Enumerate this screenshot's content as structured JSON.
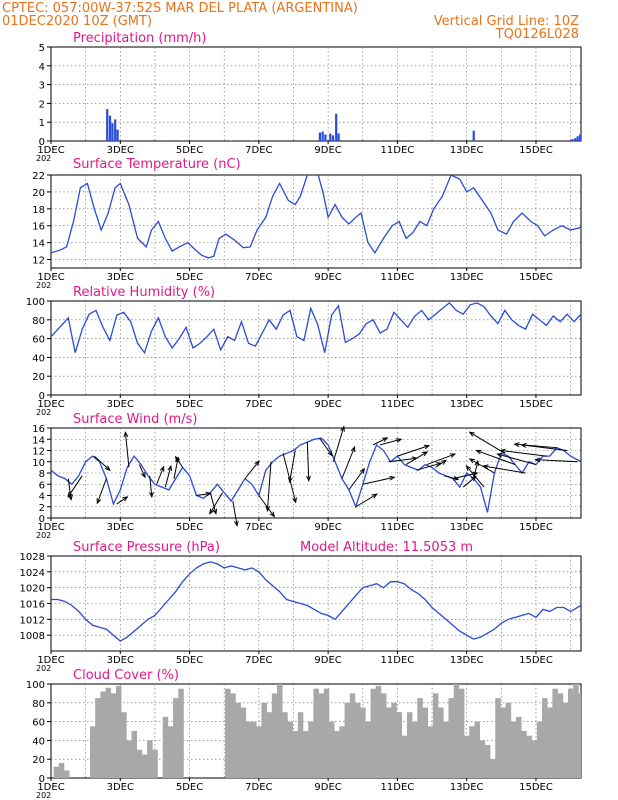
{
  "header": {
    "line1": "CPTEC:   057:00W-37:52S   MAR DEL PLATA (ARGENTINA)",
    "line2_left": "01DEC2020  10Z  (GMT)",
    "line2_right": "Vertical Grid Line: 10Z",
    "line3_right": "TQ0126L028"
  },
  "colors": {
    "header": "#e8731a",
    "panel_title": "#e0188a",
    "series": "#2a4bd7",
    "cloud": "#a8a8a8",
    "arrow": "#000000"
  },
  "x_axis": {
    "year_label": "202",
    "ticks": [
      {
        "label": "1DEC",
        "day": 1
      },
      {
        "label": "3DEC",
        "day": 3
      },
      {
        "label": "5DEC",
        "day": 5
      },
      {
        "label": "7DEC",
        "day": 7
      },
      {
        "label": "9DEC",
        "day": 9
      },
      {
        "label": "11DEC",
        "day": 11
      },
      {
        "label": "13DEC",
        "day": 13
      },
      {
        "label": "15DEC",
        "day": 15
      }
    ],
    "range": [
      1,
      16.3
    ]
  },
  "chart_data": [
    {
      "type": "bar",
      "title": "Precipitation (mm/h)",
      "ylim": [
        0,
        5
      ],
      "yticks": [
        0,
        1,
        2,
        3,
        4,
        5
      ],
      "x": [
        2.62,
        2.7,
        2.77,
        2.85,
        2.92,
        4.3,
        4.8,
        6.2,
        6.8,
        8.76,
        8.84,
        8.92,
        9.06,
        9.14,
        9.23,
        9.3,
        10.5,
        11.2,
        13.2,
        16.05,
        16.13,
        16.2,
        16.27
      ],
      "values": [
        1.7,
        1.35,
        0.95,
        1.15,
        0.6,
        0.03,
        0.03,
        0.03,
        0.02,
        0.45,
        0.5,
        0.35,
        0.4,
        0.3,
        1.45,
        0.4,
        0.03,
        0.03,
        0.55,
        0.1,
        0.15,
        0.25,
        0.35
      ]
    },
    {
      "type": "line",
      "title": "Surface Temperature (nC)",
      "ylim": [
        11,
        22
      ],
      "yticks": [
        12,
        14,
        16,
        18,
        20,
        22
      ],
      "x": [
        1.0,
        1.25,
        1.45,
        1.65,
        1.85,
        2.05,
        2.25,
        2.45,
        2.65,
        2.85,
        3.0,
        3.25,
        3.5,
        3.75,
        3.9,
        4.1,
        4.3,
        4.5,
        4.7,
        4.95,
        5.15,
        5.35,
        5.55,
        5.7,
        5.85,
        6.05,
        6.3,
        6.55,
        6.75,
        6.95,
        7.2,
        7.4,
        7.6,
        7.85,
        8.05,
        8.2,
        8.4,
        8.55,
        8.7,
        8.85,
        9.0,
        9.2,
        9.4,
        9.6,
        9.8,
        9.95,
        10.15,
        10.35,
        10.6,
        10.85,
        11.05,
        11.25,
        11.45,
        11.65,
        11.85,
        12.05,
        12.3,
        12.55,
        12.8,
        13.0,
        13.2,
        13.45,
        13.7,
        13.9,
        14.15,
        14.35,
        14.6,
        14.85,
        15.05,
        15.25,
        15.5,
        15.75,
        16.0,
        16.3
      ],
      "values": [
        12.8,
        13.1,
        13.5,
        16.5,
        20.5,
        21.0,
        18.0,
        15.5,
        17.5,
        20.5,
        21.0,
        18.5,
        14.5,
        13.5,
        15.5,
        16.5,
        14.5,
        13.0,
        13.5,
        14.0,
        13.2,
        12.5,
        12.2,
        12.4,
        14.5,
        15.0,
        14.3,
        13.4,
        13.5,
        15.5,
        17.0,
        19.5,
        21.0,
        19.0,
        18.5,
        19.5,
        22.0,
        22.5,
        22.2,
        20.0,
        17.0,
        18.5,
        17.0,
        16.2,
        17.0,
        17.5,
        14.0,
        12.8,
        14.5,
        16.0,
        16.5,
        14.5,
        15.2,
        16.5,
        16.0,
        18.0,
        19.5,
        22.0,
        21.5,
        20.0,
        20.5,
        19.0,
        17.5,
        15.5,
        15.0,
        16.5,
        17.5,
        16.5,
        16.0,
        14.8,
        15.5,
        16.0,
        15.5,
        15.8
      ]
    },
    {
      "type": "line",
      "title": "Relative Humidity (%)",
      "ylim": [
        0,
        100
      ],
      "yticks": [
        0,
        20,
        40,
        60,
        80,
        100
      ],
      "x": [
        1.0,
        1.25,
        1.5,
        1.7,
        1.9,
        2.1,
        2.3,
        2.5,
        2.7,
        2.9,
        3.1,
        3.3,
        3.5,
        3.7,
        3.9,
        4.1,
        4.3,
        4.5,
        4.7,
        4.9,
        5.1,
        5.3,
        5.5,
        5.7,
        5.9,
        6.1,
        6.3,
        6.5,
        6.7,
        6.9,
        7.1,
        7.3,
        7.5,
        7.7,
        7.9,
        8.1,
        8.3,
        8.5,
        8.7,
        8.9,
        9.1,
        9.3,
        9.5,
        9.7,
        9.9,
        10.1,
        10.3,
        10.5,
        10.7,
        10.9,
        11.1,
        11.3,
        11.5,
        11.7,
        11.9,
        12.1,
        12.3,
        12.5,
        12.7,
        12.9,
        13.1,
        13.3,
        13.5,
        13.7,
        13.9,
        14.1,
        14.3,
        14.5,
        14.7,
        14.9,
        15.1,
        15.3,
        15.5,
        15.7,
        15.9,
        16.1,
        16.3
      ],
      "values": [
        62,
        72,
        82,
        45,
        70,
        86,
        90,
        72,
        58,
        85,
        88,
        78,
        55,
        45,
        68,
        82,
        62,
        50,
        60,
        72,
        50,
        55,
        62,
        70,
        48,
        62,
        58,
        78,
        55,
        52,
        66,
        80,
        70,
        85,
        90,
        62,
        58,
        92,
        75,
        45,
        85,
        95,
        56,
        60,
        65,
        76,
        80,
        66,
        70,
        88,
        80,
        72,
        84,
        90,
        80,
        86,
        92,
        98,
        90,
        86,
        96,
        98,
        94,
        84,
        76,
        90,
        80,
        74,
        70,
        86,
        80,
        74,
        84,
        78,
        86,
        78,
        86
      ]
    },
    {
      "type": "line",
      "title": "Surface Wind (m/s)",
      "ylim": [
        0,
        16
      ],
      "yticks": [
        0,
        2,
        4,
        6,
        8,
        10,
        12,
        14,
        16
      ],
      "x": [
        1.0,
        1.2,
        1.4,
        1.6,
        1.8,
        2.0,
        2.2,
        2.4,
        2.6,
        2.8,
        3.0,
        3.2,
        3.4,
        3.6,
        3.8,
        4.0,
        4.2,
        4.4,
        4.6,
        4.8,
        5.0,
        5.2,
        5.4,
        5.6,
        5.8,
        6.0,
        6.2,
        6.4,
        6.6,
        6.8,
        7.0,
        7.2,
        7.4,
        7.6,
        7.8,
        8.0,
        8.2,
        8.4,
        8.6,
        8.8,
        9.0,
        9.2,
        9.4,
        9.6,
        9.8,
        10.0,
        10.2,
        10.4,
        10.6,
        10.8,
        11.0,
        11.2,
        11.4,
        11.6,
        11.8,
        12.0,
        12.2,
        12.4,
        12.6,
        12.8,
        13.0,
        13.2,
        13.4,
        13.6,
        13.8,
        14.0,
        14.2,
        14.4,
        14.6,
        14.8,
        15.0,
        15.2,
        15.4,
        15.6,
        15.8,
        16.0,
        16.3
      ],
      "values": [
        8.5,
        7.5,
        7.0,
        6.0,
        7.5,
        10.0,
        11.0,
        10.0,
        7.0,
        2.5,
        5.0,
        9.0,
        11.0,
        9.5,
        7.5,
        6.0,
        5.5,
        5.0,
        7.0,
        9.0,
        7.5,
        4.0,
        3.5,
        4.5,
        6.0,
        4.5,
        3.0,
        5.0,
        7.0,
        6.0,
        4.0,
        8.5,
        10.0,
        11.0,
        11.5,
        12.0,
        13.0,
        13.5,
        14.0,
        14.2,
        13.0,
        10.0,
        7.0,
        5.0,
        2.0,
        6.0,
        10.0,
        13.0,
        12.0,
        10.0,
        11.0,
        9.5,
        9.0,
        8.5,
        9.5,
        9.0,
        8.0,
        7.5,
        7.0,
        5.5,
        8.0,
        7.0,
        5.5,
        1.0,
        8.0,
        11.5,
        11.0,
        9.5,
        8.0,
        10.0,
        9.5,
        11.0,
        11.0,
        12.5,
        12.0,
        11.0,
        10.0
      ],
      "vectors": [
        {
          "day": 1.5,
          "u": 0.4,
          "v": -3.0
        },
        {
          "day": 1.9,
          "u": -2.0,
          "v": -3.0
        },
        {
          "day": 2.25,
          "u": 2.2,
          "v": -2.0
        },
        {
          "day": 2.6,
          "u": -1.3,
          "v": -3.5
        },
        {
          "day": 2.9,
          "u": 1.5,
          "v": 1.0
        },
        {
          "day": 3.25,
          "u": -0.5,
          "v": 5.0
        },
        {
          "day": 3.55,
          "u": 0.8,
          "v": -1.8
        },
        {
          "day": 3.85,
          "u": 0.3,
          "v": -3.0
        },
        {
          "day": 4.05,
          "u": 1.0,
          "v": 2.5
        },
        {
          "day": 4.3,
          "u": 0.8,
          "v": 3.0
        },
        {
          "day": 4.55,
          "u": 0.6,
          "v": 3.0
        },
        {
          "day": 4.8,
          "u": -1.0,
          "v": 1.5
        },
        {
          "day": 5.2,
          "u": 2.0,
          "v": 0.3
        },
        {
          "day": 5.6,
          "u": 0.8,
          "v": -3.0
        },
        {
          "day": 5.95,
          "u": -1.8,
          "v": -3.0
        },
        {
          "day": 6.25,
          "u": 0.6,
          "v": -3.5
        },
        {
          "day": 6.6,
          "u": 2.0,
          "v": 2.5
        },
        {
          "day": 7.0,
          "u": 2.2,
          "v": -3.0
        },
        {
          "day": 7.35,
          "u": -0.5,
          "v": -7.0
        },
        {
          "day": 7.7,
          "u": 1.8,
          "v": -7.0
        },
        {
          "day": 8.05,
          "u": -0.8,
          "v": -4.5
        },
        {
          "day": 8.4,
          "u": 0.2,
          "v": -5.5
        },
        {
          "day": 8.75,
          "u": 1.8,
          "v": -2.5
        },
        {
          "day": 9.15,
          "u": 1.5,
          "v": 5.0
        },
        {
          "day": 9.4,
          "u": 1.8,
          "v": 4.5
        },
        {
          "day": 9.6,
          "u": 2.2,
          "v": 3.0
        },
        {
          "day": 9.8,
          "u": 3.0,
          "v": 1.8
        },
        {
          "day": 10.0,
          "u": 4.5,
          "v": 1.0
        },
        {
          "day": 10.3,
          "u": 2.0,
          "v": 1.0
        },
        {
          "day": 10.5,
          "u": 3.0,
          "v": 0.8
        },
        {
          "day": 10.75,
          "u": 4.0,
          "v": 0.5
        },
        {
          "day": 11.0,
          "u": 4.5,
          "v": 1.5
        },
        {
          "day": 11.25,
          "u": 3.0,
          "v": 1.8
        },
        {
          "day": 11.55,
          "u": 3.5,
          "v": 1.0
        },
        {
          "day": 11.85,
          "u": 4.0,
          "v": 1.5
        },
        {
          "day": 12.1,
          "u": 1.5,
          "v": 1.0
        },
        {
          "day": 12.35,
          "u": 2.0,
          "v": -0.5
        },
        {
          "day": 12.6,
          "u": 3.5,
          "v": 0.8
        },
        {
          "day": 12.9,
          "u": 1.8,
          "v": 1.5
        },
        {
          "day": 13.2,
          "u": 0.6,
          "v": 2.5
        },
        {
          "day": 13.5,
          "u": -2.5,
          "v": 3.0
        },
        {
          "day": 13.8,
          "u": -3.5,
          "v": 2.0
        },
        {
          "day": 14.1,
          "u": -5.0,
          "v": 3.0
        },
        {
          "day": 14.4,
          "u": -5.5,
          "v": 2.0
        },
        {
          "day": 14.7,
          "u": -6.0,
          "v": 1.0
        },
        {
          "day": 15.0,
          "u": -5.5,
          "v": 1.5
        },
        {
          "day": 15.3,
          "u": -6.5,
          "v": 0.8
        },
        {
          "day": 15.6,
          "u": -6.0,
          "v": 0.5
        },
        {
          "day": 15.9,
          "u": -6.5,
          "v": 0.8
        },
        {
          "day": 16.2,
          "u": -6.0,
          "v": 0.3
        }
      ]
    },
    {
      "type": "line",
      "title": "Surface Pressure (hPa)",
      "annotation": "Model Altitude: 11.5053 m",
      "ylim": [
        1004,
        1028
      ],
      "yticks": [
        1008,
        1012,
        1016,
        1020,
        1024,
        1028
      ],
      "x": [
        1.0,
        1.2,
        1.4,
        1.6,
        1.8,
        2.0,
        2.2,
        2.4,
        2.6,
        2.8,
        3.0,
        3.2,
        3.4,
        3.6,
        3.8,
        4.0,
        4.2,
        4.4,
        4.6,
        4.8,
        5.0,
        5.2,
        5.4,
        5.6,
        5.8,
        6.0,
        6.2,
        6.4,
        6.6,
        6.8,
        7.0,
        7.2,
        7.4,
        7.6,
        7.8,
        8.0,
        8.2,
        8.4,
        8.6,
        8.8,
        9.0,
        9.2,
        9.4,
        9.6,
        9.8,
        10.0,
        10.2,
        10.4,
        10.6,
        10.8,
        11.0,
        11.2,
        11.4,
        11.6,
        11.8,
        12.0,
        12.2,
        12.4,
        12.6,
        12.8,
        13.0,
        13.2,
        13.4,
        13.6,
        13.8,
        14.0,
        14.2,
        14.4,
        14.6,
        14.8,
        15.0,
        15.2,
        15.4,
        15.6,
        15.8,
        16.0,
        16.3
      ],
      "values": [
        1017.0,
        1017.0,
        1016.5,
        1015.5,
        1014.0,
        1012.0,
        1010.5,
        1010.0,
        1009.5,
        1008.0,
        1006.5,
        1007.5,
        1009.0,
        1010.5,
        1012.0,
        1013.0,
        1015.0,
        1017.0,
        1019.0,
        1021.5,
        1023.5,
        1025.0,
        1026.0,
        1026.5,
        1026.0,
        1025.0,
        1025.5,
        1025.0,
        1024.5,
        1025.0,
        1024.0,
        1022.0,
        1020.5,
        1019.0,
        1017.0,
        1016.5,
        1016.0,
        1015.5,
        1014.5,
        1013.5,
        1013.0,
        1012.0,
        1014.0,
        1016.0,
        1018.0,
        1020.0,
        1020.5,
        1021.0,
        1020.0,
        1021.5,
        1021.5,
        1021.0,
        1019.5,
        1018.5,
        1017.0,
        1015.0,
        1013.5,
        1012.0,
        1010.5,
        1009.0,
        1008.0,
        1007.0,
        1007.5,
        1008.5,
        1009.5,
        1011.0,
        1012.0,
        1012.5,
        1013.0,
        1013.5,
        1012.5,
        1014.5,
        1014.0,
        1015.0,
        1015.0,
        1014.0,
        1015.5
      ]
    },
    {
      "type": "bar",
      "title": "Cloud Cover (%)",
      "ylim": [
        0,
        100
      ],
      "yticks": [
        0,
        20,
        40,
        60,
        80,
        100
      ],
      "x": [
        1.15,
        1.3,
        1.45,
        1.6,
        1.75,
        1.9,
        2.05,
        2.2,
        2.35,
        2.5,
        2.65,
        2.8,
        2.95,
        3.1,
        3.25,
        3.4,
        3.55,
        3.7,
        3.85,
        4.0,
        4.15,
        4.3,
        4.45,
        4.6,
        4.75,
        4.9,
        5.05,
        5.2,
        5.35,
        5.5,
        5.65,
        5.8,
        5.95,
        6.1,
        6.25,
        6.4,
        6.55,
        6.7,
        6.85,
        7.0,
        7.15,
        7.3,
        7.45,
        7.6,
        7.75,
        7.9,
        8.05,
        8.2,
        8.35,
        8.5,
        8.65,
        8.8,
        8.95,
        9.1,
        9.25,
        9.4,
        9.55,
        9.7,
        9.85,
        10.0,
        10.15,
        10.3,
        10.45,
        10.6,
        10.75,
        10.9,
        11.05,
        11.2,
        11.35,
        11.5,
        11.65,
        11.8,
        11.95,
        12.1,
        12.25,
        12.4,
        12.55,
        12.7,
        12.85,
        13.0,
        13.15,
        13.3,
        13.45,
        13.6,
        13.75,
        13.9,
        14.05,
        14.2,
        14.35,
        14.5,
        14.65,
        14.8,
        14.95,
        15.1,
        15.25,
        15.4,
        15.55,
        15.7,
        15.85,
        16.0,
        16.15,
        16.3
      ],
      "values": [
        12,
        16,
        8,
        0,
        0,
        0,
        0,
        55,
        85,
        92,
        96,
        90,
        98,
        70,
        40,
        50,
        30,
        25,
        40,
        30,
        0,
        65,
        55,
        85,
        95,
        0,
        0,
        0,
        0,
        0,
        0,
        0,
        0,
        95,
        90,
        80,
        75,
        60,
        60,
        55,
        80,
        70,
        90,
        100,
        70,
        60,
        50,
        70,
        50,
        60,
        95,
        90,
        95,
        60,
        50,
        55,
        80,
        90,
        80,
        75,
        60,
        95,
        98,
        90,
        75,
        80,
        70,
        45,
        70,
        60,
        85,
        75,
        55,
        90,
        75,
        60,
        85,
        100,
        95,
        45,
        55,
        60,
        40,
        35,
        20,
        85,
        75,
        80,
        60,
        65,
        50,
        45,
        40,
        60,
        85,
        75,
        95,
        90,
        80,
        95,
        100,
        90
      ]
    }
  ]
}
